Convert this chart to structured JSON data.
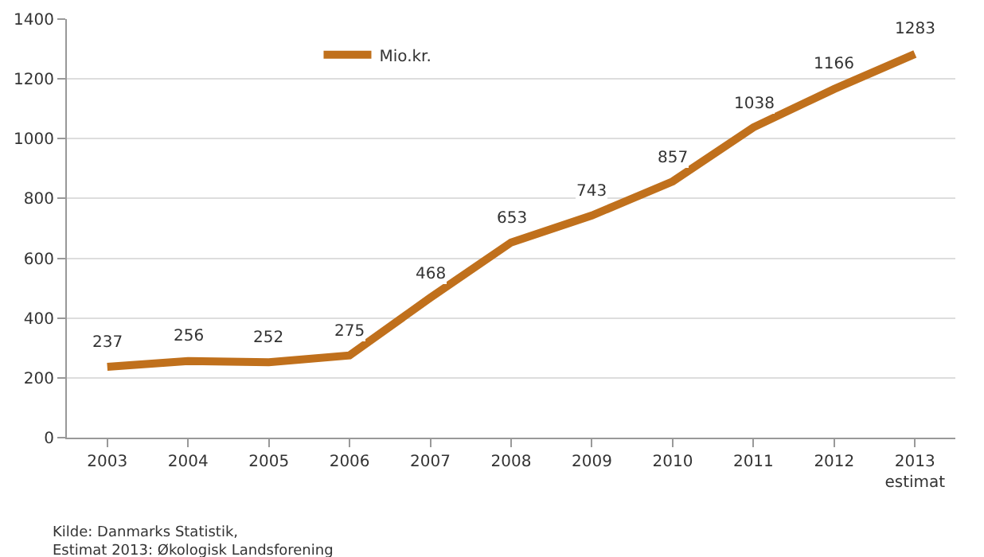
{
  "chart_data": {
    "type": "line",
    "categories": [
      "2003",
      "2004",
      "2005",
      "2006",
      "2007",
      "2008",
      "2009",
      "2010",
      "2011",
      "2012",
      "2013\nestimat"
    ],
    "series": [
      {
        "name": "Mio.kr.",
        "color": "#c0701c",
        "values": [
          237,
          256,
          252,
          275,
          468,
          653,
          743,
          857,
          1038,
          1166,
          1283
        ]
      }
    ],
    "ylim": [
      0,
      1400
    ],
    "yticks": [
      0,
      200,
      400,
      600,
      800,
      1000,
      1200,
      1400
    ],
    "grid": "y",
    "legend": "top left",
    "data_labels": true,
    "marker": "none",
    "line_style": "solid",
    "annotations": [
      "Kilde: Danmarks Statistik,\nEstimat 2013: Økologisk Landsforening"
    ]
  }
}
